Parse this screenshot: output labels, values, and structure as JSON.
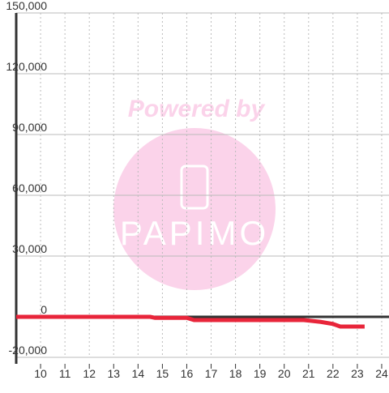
{
  "chart_data": {
    "type": "line",
    "watermark": {
      "line1": "Powered by",
      "line2": "PAPIMO"
    },
    "x": [
      9,
      14.5,
      14.7,
      16.0,
      16.3,
      20.8,
      21.5,
      22.0,
      22.3,
      23.3
    ],
    "series": [
      {
        "color": "#e8253a",
        "values": [
          0,
          0,
          -500,
          -500,
          -1600,
          -1600,
          -2500,
          -3500,
          -4800,
          -4800
        ]
      }
    ],
    "xlim": [
      9,
      24.3
    ],
    "xticks": [
      10,
      11,
      12,
      13,
      14,
      15,
      16,
      17,
      18,
      19,
      20,
      21,
      22,
      23,
      24
    ],
    "ylim": [
      -20000,
      150000
    ],
    "yticks": [
      {
        "value": -20000,
        "label": "-20,000"
      },
      0,
      {
        "value": 30000,
        "label": "30,000"
      },
      {
        "value": 60000,
        "label": "60,000"
      },
      {
        "value": 90000,
        "label": "90,000"
      },
      {
        "value": 120000,
        "label": "120,000"
      },
      {
        "value": 150000,
        "label": "150,000"
      }
    ],
    "grid": true
  }
}
